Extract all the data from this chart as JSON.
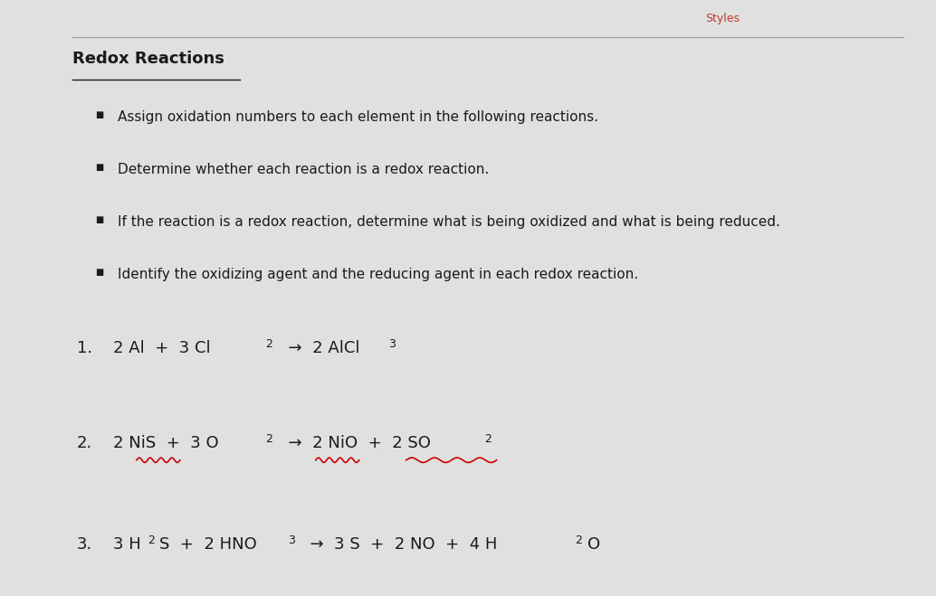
{
  "bg_color": "#e0e0e0",
  "top_label": "Styles",
  "title": "Redox Reactions",
  "bullets": [
    "Assign oxidation numbers to each element in the following reactions.",
    "Determine whether each reaction is a redox reaction.",
    "If the reaction is a redox reaction, determine what is being oxidized and what is being reduced.",
    "Identify the oxidizing agent and the reducing agent in each redox reaction."
  ],
  "title_fontsize": 13,
  "bullet_fontsize": 11,
  "reaction_fontsize": 13,
  "sub_fontsize": 9,
  "text_color": "#1a1a1a",
  "wavy_color": "#cc0000",
  "styles_color": "#c0392b",
  "line_color": "#999999"
}
